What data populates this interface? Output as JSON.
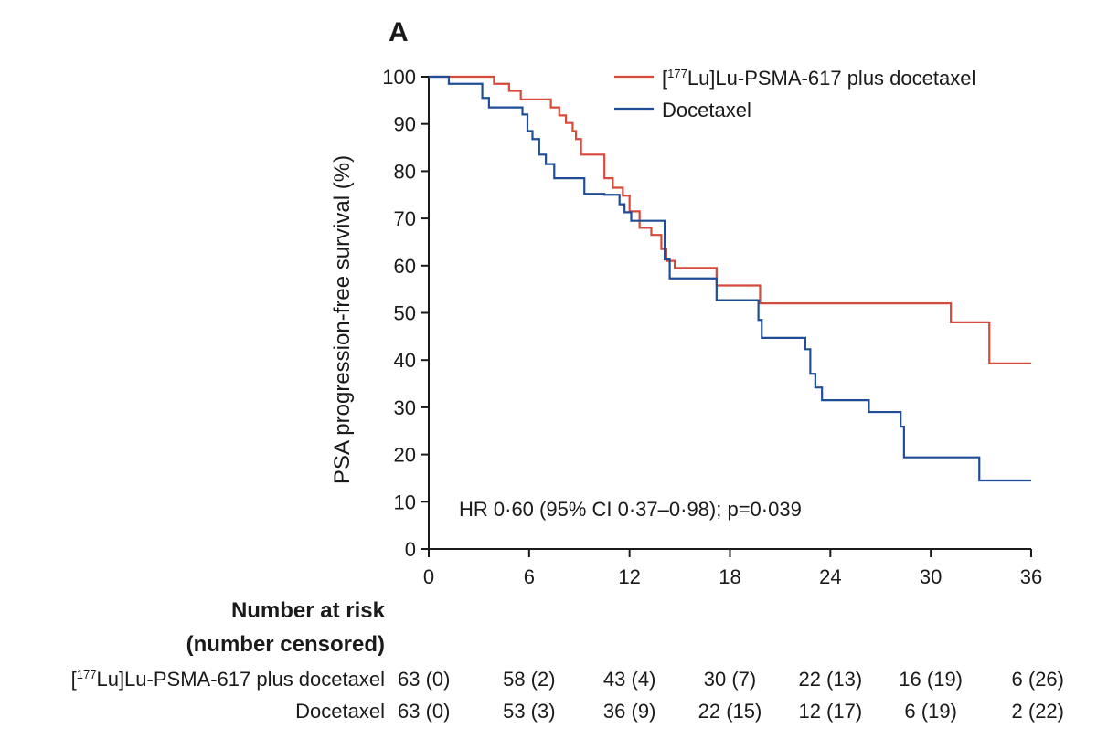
{
  "chart_data": {
    "type": "line",
    "panel_label": "A",
    "ylabel": "PSA progression-free survival (%)",
    "xlabel": "",
    "xlim": [
      0,
      36
    ],
    "ylim": [
      0,
      100
    ],
    "x_ticks": [
      0,
      6,
      12,
      18,
      24,
      30,
      36
    ],
    "y_ticks": [
      0,
      10,
      20,
      30,
      40,
      50,
      60,
      70,
      80,
      90,
      100
    ],
    "legend_position": "top-right",
    "annotation": "HR 0·60 (95% CI 0·37–0·98); p=0·039",
    "series": [
      {
        "name": "[177Lu]Lu-PSMA-617 plus docetaxel",
        "color": "#d64a3c",
        "x": [
          0,
          3.9,
          4.8,
          5.5,
          7.3,
          7.8,
          8.2,
          8.6,
          8.8,
          9.1,
          10.5,
          11.0,
          11.6,
          12.0,
          12.6,
          13.3,
          13.9,
          14.2,
          14.7,
          17.2,
          19.8,
          31.2,
          33.5,
          36
        ],
        "y": [
          100,
          98.5,
          97,
          95.2,
          93.5,
          91.8,
          90.2,
          88.5,
          86.8,
          83.5,
          78.5,
          76.5,
          74.8,
          71.5,
          68,
          66.5,
          63.5,
          61,
          59.5,
          55.8,
          52,
          48,
          39.3,
          39.3
        ]
      },
      {
        "name": "Docetaxel",
        "color": "#1f4e96",
        "x": [
          0,
          1.2,
          3.2,
          3.6,
          5.6,
          5.9,
          6.2,
          6.6,
          7.0,
          7.5,
          9.3,
          10.5,
          11.4,
          11.7,
          12.1,
          14.1,
          14.4,
          17.2,
          19.7,
          19.9,
          22.5,
          22.8,
          23.1,
          23.5,
          26.3,
          28.2,
          28.4,
          32.9,
          36
        ],
        "y": [
          100,
          98.5,
          95.5,
          93.5,
          92,
          88.5,
          86.8,
          83.5,
          81.5,
          78.5,
          75.2,
          75,
          73,
          71.3,
          69.5,
          61.3,
          57.3,
          52.7,
          48.5,
          44.7,
          42.3,
          37.1,
          34.2,
          31.5,
          29,
          25.9,
          19.4,
          14.5,
          14.5
        ]
      }
    ]
  },
  "risk_table": {
    "title_line1": "Number at risk",
    "title_line2": "(number censored)",
    "timepoints": [
      0,
      6,
      12,
      18,
      24,
      30,
      36
    ],
    "rows": [
      {
        "label_sup": "177",
        "label_rest": "Lu]Lu-PSMA-617 plus docetaxel",
        "values": [
          "63 (0)",
          "58 (2)",
          "43 (4)",
          "30 (7)",
          "22 (13)",
          "16 (19)",
          "6 (26)"
        ]
      },
      {
        "label": "Docetaxel",
        "values": [
          "63 (0)",
          "53 (3)",
          "36 (9)",
          "22 (15)",
          "12 (17)",
          "6 (19)",
          "2 (22)"
        ]
      }
    ]
  }
}
